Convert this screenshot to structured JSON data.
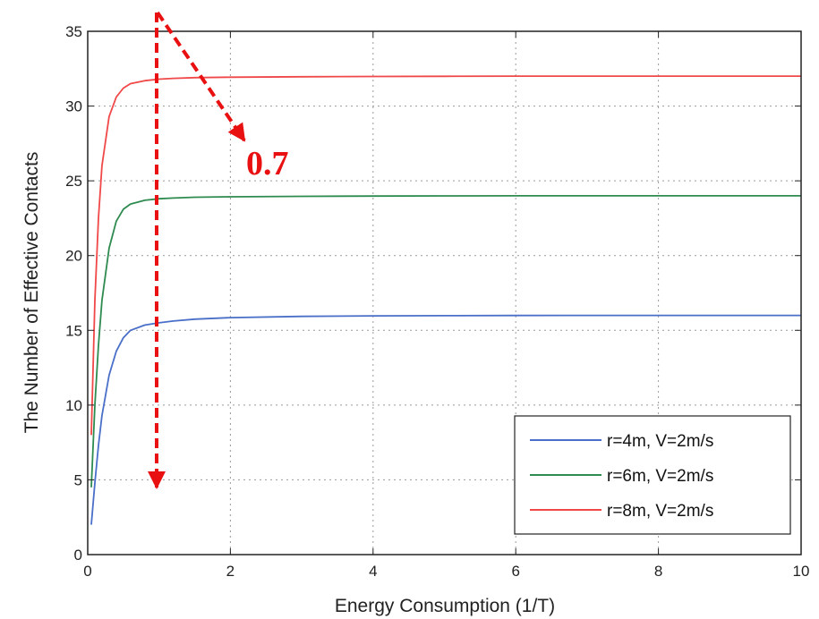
{
  "chart_data": {
    "type": "line",
    "title": "",
    "xlabel": "Energy Consumption (1/T)",
    "ylabel": "The Number of Effective Contacts",
    "xlim": [
      0,
      10
    ],
    "ylim": [
      0,
      35
    ],
    "xticks": [
      0,
      2,
      4,
      6,
      8,
      10
    ],
    "yticks": [
      0,
      5,
      10,
      15,
      20,
      25,
      30,
      35
    ],
    "grid": true,
    "legend_position": "bottom-right",
    "x": [
      0.05,
      0.1,
      0.15,
      0.2,
      0.3,
      0.4,
      0.5,
      0.6,
      0.8,
      1.0,
      1.2,
      1.5,
      2,
      3,
      4,
      5,
      6,
      7,
      8,
      9,
      10
    ],
    "series": [
      {
        "name": "r=4m, V=2m/s",
        "color": "#4a6fc8",
        "values": [
          2.0,
          4.8,
          7.3,
          9.3,
          12.0,
          13.6,
          14.5,
          15.0,
          15.35,
          15.5,
          15.62,
          15.75,
          15.85,
          15.93,
          15.97,
          15.98,
          15.99,
          16.0,
          16.0,
          16.0,
          16.0
        ]
      },
      {
        "name": "r=6m, V=2m/s",
        "color": "#2e8b4f",
        "values": [
          4.5,
          10.0,
          14.0,
          17.0,
          20.5,
          22.3,
          23.1,
          23.45,
          23.7,
          23.8,
          23.85,
          23.9,
          23.93,
          23.96,
          23.98,
          23.99,
          24.0,
          24.0,
          24.0,
          24.0,
          24.0
        ]
      },
      {
        "name": "r=8m, V=2m/s",
        "color": "#f04848",
        "values": [
          8.0,
          17.0,
          22.5,
          26.0,
          29.3,
          30.6,
          31.2,
          31.5,
          31.7,
          31.8,
          31.85,
          31.9,
          31.93,
          31.96,
          31.98,
          31.99,
          32.0,
          32.0,
          32.0,
          32.0,
          32.0
        ]
      }
    ],
    "annotations": [
      {
        "text": "0.7",
        "color": "#e81010"
      }
    ]
  }
}
